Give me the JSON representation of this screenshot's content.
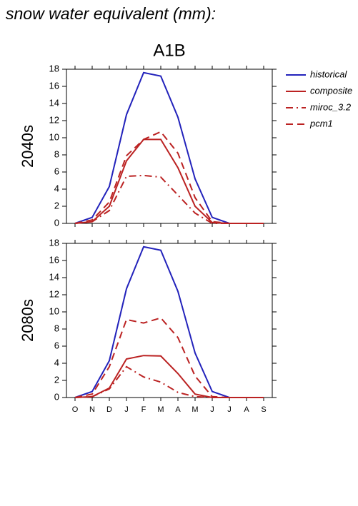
{
  "header": {
    "title": "snow water equivalent (mm):",
    "scenario": "A1B"
  },
  "chart_data": [
    {
      "type": "line",
      "ylabel": "2040s",
      "categories": [
        "O",
        "N",
        "D",
        "J",
        "F",
        "M",
        "A",
        "M",
        "J",
        "J",
        "A",
        "S"
      ],
      "ylim": [
        0,
        18
      ],
      "yticks": [
        0,
        2,
        4,
        6,
        8,
        10,
        12,
        14,
        16,
        18
      ],
      "legend": "outside-right",
      "series": [
        {
          "name": "historical",
          "color": "#2222bb",
          "dash": "solid",
          "values": [
            0,
            0.7,
            4.3,
            12.7,
            17.6,
            17.2,
            12.4,
            5.2,
            0.7,
            0,
            0,
            0
          ]
        },
        {
          "name": "composite",
          "color": "#bb2222",
          "dash": "solid",
          "values": [
            0,
            0.2,
            2.0,
            7.3,
            9.8,
            9.8,
            6.5,
            2.0,
            0.1,
            0,
            0,
            0
          ]
        },
        {
          "name": "miroc_3.2",
          "color": "#bb2222",
          "dash": "dashdot",
          "values": [
            0,
            0.2,
            1.5,
            5.5,
            5.6,
            5.4,
            3.3,
            1.2,
            0,
            0,
            0,
            0
          ]
        },
        {
          "name": "pcm1",
          "color": "#bb2222",
          "dash": "dashed",
          "values": [
            0,
            0.4,
            2.5,
            7.9,
            9.8,
            10.7,
            8.2,
            3.0,
            0.2,
            0,
            0,
            0
          ]
        }
      ]
    },
    {
      "type": "line",
      "ylabel": "2080s",
      "categories": [
        "O",
        "N",
        "D",
        "J",
        "F",
        "M",
        "A",
        "M",
        "J",
        "J",
        "A",
        "S"
      ],
      "ylim": [
        0,
        18
      ],
      "yticks": [
        0,
        2,
        4,
        6,
        8,
        10,
        12,
        14,
        16,
        18
      ],
      "series": [
        {
          "name": "historical",
          "color": "#2222bb",
          "dash": "solid",
          "values": [
            0,
            0.7,
            4.3,
            12.7,
            17.6,
            17.2,
            12.4,
            5.2,
            0.7,
            0,
            0,
            0
          ]
        },
        {
          "name": "composite",
          "color": "#bb2222",
          "dash": "solid",
          "values": [
            0,
            0.1,
            1.1,
            4.5,
            4.9,
            4.85,
            2.8,
            0.4,
            0,
            0,
            0,
            0
          ]
        },
        {
          "name": "miroc_3.2",
          "color": "#bb2222",
          "dash": "dashdot",
          "values": [
            0,
            0.1,
            1.0,
            3.6,
            2.4,
            1.8,
            0.6,
            0.1,
            0,
            0,
            0,
            0
          ]
        },
        {
          "name": "pcm1",
          "color": "#bb2222",
          "dash": "dashed",
          "values": [
            0,
            0.4,
            3.6,
            9.1,
            8.7,
            9.3,
            7.0,
            2.5,
            0.1,
            0,
            0,
            0
          ]
        }
      ]
    }
  ]
}
